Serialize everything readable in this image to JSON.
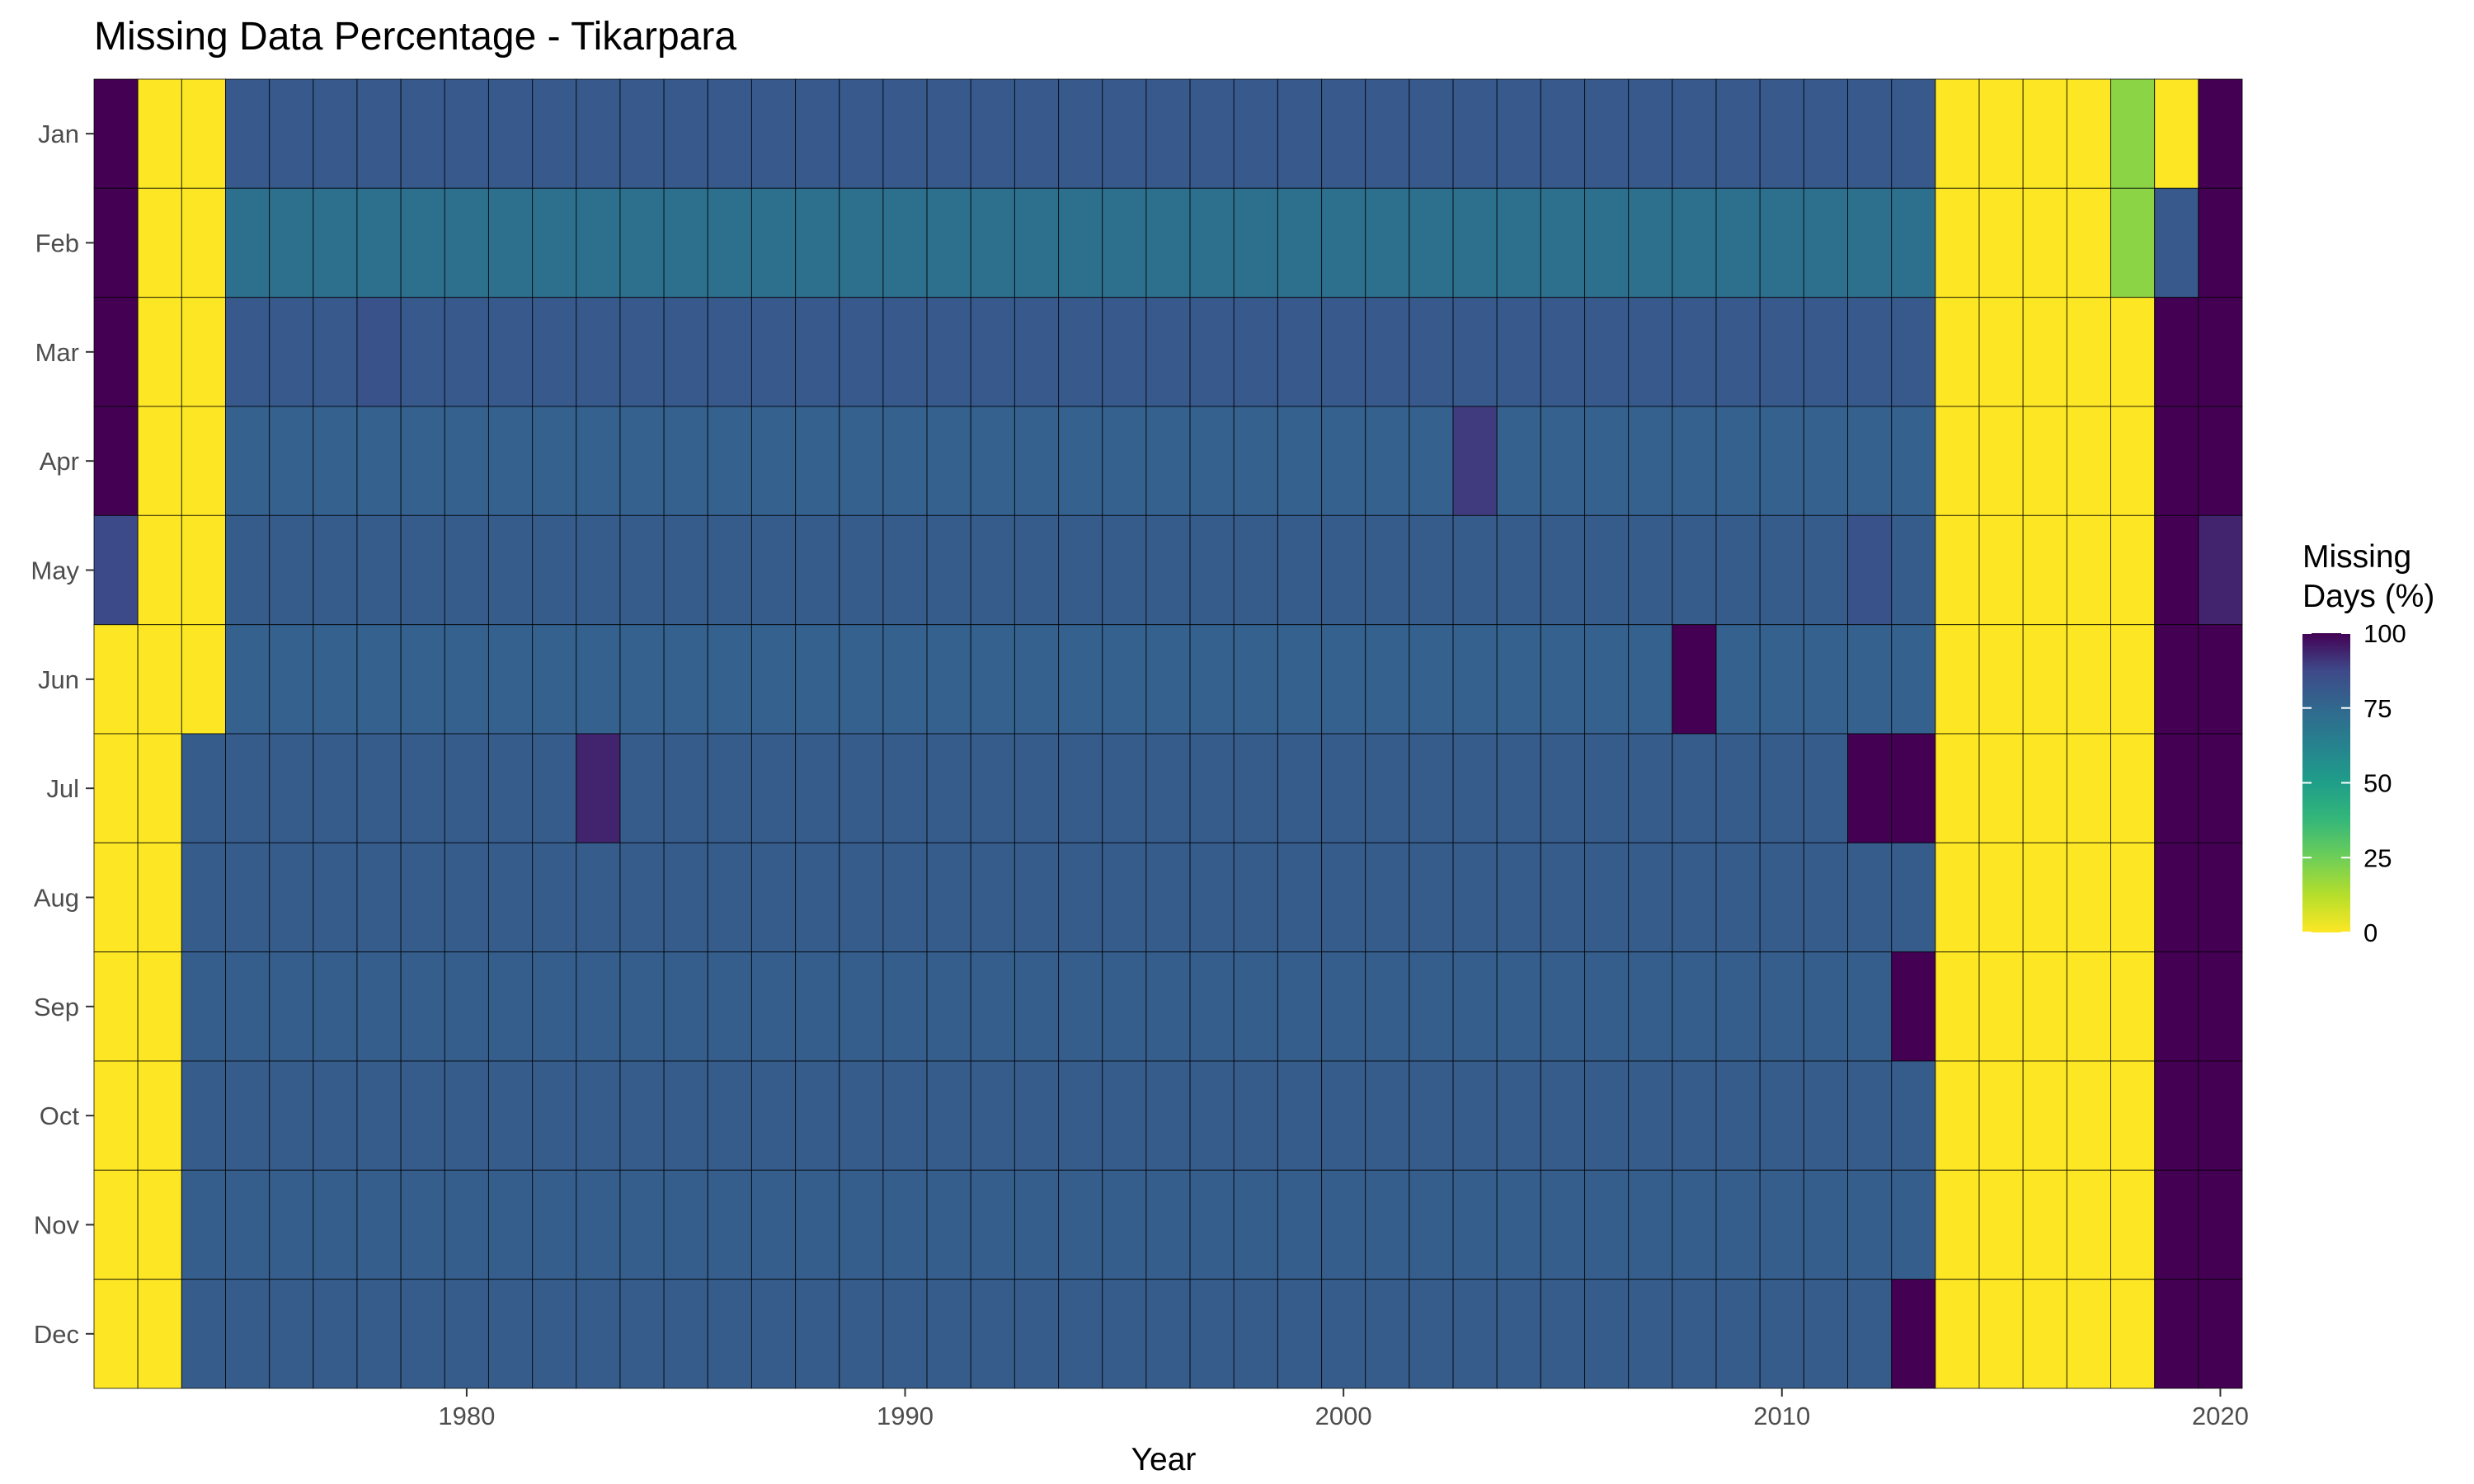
{
  "chart_data": {
    "type": "heatmap",
    "title": "Missing Data Percentage - Tikarpara",
    "xlabel": "Year",
    "ylabel": "",
    "x_range": [
      1972,
      2020
    ],
    "x_ticks": [
      1980,
      1990,
      2000,
      2010,
      2020
    ],
    "months": [
      "Jan",
      "Feb",
      "Mar",
      "Apr",
      "May",
      "Jun",
      "Jul",
      "Aug",
      "Sep",
      "Oct",
      "Nov",
      "Dec"
    ],
    "legend": {
      "title": [
        "Missing",
        "Days (%)"
      ],
      "ticks": [
        0,
        25,
        50,
        75,
        100
      ],
      "range": [
        0,
        100
      ],
      "placement": "right"
    },
    "colorscale": "viridis-reversed",
    "default_value": 81,
    "segments": [
      {
        "month": "Jan",
        "from": 1972,
        "to": 1972,
        "value": 100
      },
      {
        "month": "Jan",
        "from": 1973,
        "to": 1974,
        "value": 0
      },
      {
        "month": "Jan",
        "from": 1975,
        "to": 2013,
        "value": 81
      },
      {
        "month": "Jan",
        "from": 2014,
        "to": 2017,
        "value": 0
      },
      {
        "month": "Jan",
        "from": 2018,
        "to": 2018,
        "value": 20
      },
      {
        "month": "Jan",
        "from": 2019,
        "to": 2019,
        "value": 0
      },
      {
        "month": "Jan",
        "from": 2020,
        "to": 2020,
        "value": 100
      },
      {
        "month": "Feb",
        "from": 1972,
        "to": 1972,
        "value": 100
      },
      {
        "month": "Feb",
        "from": 1973,
        "to": 1974,
        "value": 0
      },
      {
        "month": "Feb",
        "from": 1975,
        "to": 2013,
        "value": 71
      },
      {
        "month": "Feb",
        "from": 2014,
        "to": 2017,
        "value": 0
      },
      {
        "month": "Feb",
        "from": 2018,
        "to": 2018,
        "value": 20
      },
      {
        "month": "Feb",
        "from": 2019,
        "to": 2019,
        "value": 81
      },
      {
        "month": "Feb",
        "from": 2020,
        "to": 2020,
        "value": 100
      },
      {
        "month": "Mar",
        "from": 1972,
        "to": 1972,
        "value": 100
      },
      {
        "month": "Mar",
        "from": 1973,
        "to": 1974,
        "value": 0
      },
      {
        "month": "Mar",
        "from": 1975,
        "to": 2013,
        "value": 81
      },
      {
        "month": "Mar",
        "from": 1978,
        "to": 1978,
        "value": 84
      },
      {
        "month": "Mar",
        "from": 2014,
        "to": 2018,
        "value": 0
      },
      {
        "month": "Mar",
        "from": 2019,
        "to": 2020,
        "value": 100
      },
      {
        "month": "Apr",
        "from": 1972,
        "to": 1972,
        "value": 100
      },
      {
        "month": "Apr",
        "from": 1973,
        "to": 1974,
        "value": 0
      },
      {
        "month": "Apr",
        "from": 1975,
        "to": 2013,
        "value": 78
      },
      {
        "month": "Apr",
        "from": 2003,
        "to": 2003,
        "value": 90
      },
      {
        "month": "Apr",
        "from": 2014,
        "to": 2018,
        "value": 0
      },
      {
        "month": "Apr",
        "from": 2019,
        "to": 2020,
        "value": 100
      },
      {
        "month": "May",
        "from": 1972,
        "to": 1972,
        "value": 87
      },
      {
        "month": "May",
        "from": 1973,
        "to": 1974,
        "value": 0
      },
      {
        "month": "May",
        "from": 1975,
        "to": 2013,
        "value": 80
      },
      {
        "month": "May",
        "from": 2012,
        "to": 2012,
        "value": 84
      },
      {
        "month": "May",
        "from": 2014,
        "to": 2018,
        "value": 0
      },
      {
        "month": "May",
        "from": 2019,
        "to": 2019,
        "value": 100
      },
      {
        "month": "May",
        "from": 2020,
        "to": 2020,
        "value": 94
      },
      {
        "month": "Jun",
        "from": 1972,
        "to": 1974,
        "value": 0
      },
      {
        "month": "Jun",
        "from": 1975,
        "to": 2013,
        "value": 78
      },
      {
        "month": "Jun",
        "from": 2008,
        "to": 2008,
        "value": 100
      },
      {
        "month": "Jun",
        "from": 2014,
        "to": 2018,
        "value": 0
      },
      {
        "month": "Jun",
        "from": 2019,
        "to": 2020,
        "value": 100
      },
      {
        "month": "Jul",
        "from": 1972,
        "to": 1973,
        "value": 0
      },
      {
        "month": "Jul",
        "from": 1974,
        "to": 2013,
        "value": 80
      },
      {
        "month": "Jul",
        "from": 1983,
        "to": 1983,
        "value": 94
      },
      {
        "month": "Jul",
        "from": 2012,
        "to": 2013,
        "value": 100
      },
      {
        "month": "Jul",
        "from": 2014,
        "to": 2018,
        "value": 0
      },
      {
        "month": "Jul",
        "from": 2019,
        "to": 2020,
        "value": 100
      },
      {
        "month": "Aug",
        "from": 1972,
        "to": 1973,
        "value": 0
      },
      {
        "month": "Aug",
        "from": 1974,
        "to": 2013,
        "value": 80
      },
      {
        "month": "Aug",
        "from": 2014,
        "to": 2018,
        "value": 0
      },
      {
        "month": "Aug",
        "from": 2019,
        "to": 2020,
        "value": 100
      },
      {
        "month": "Sep",
        "from": 1972,
        "to": 1973,
        "value": 0
      },
      {
        "month": "Sep",
        "from": 1974,
        "to": 2013,
        "value": 79
      },
      {
        "month": "Sep",
        "from": 2013,
        "to": 2013,
        "value": 100
      },
      {
        "month": "Sep",
        "from": 2014,
        "to": 2018,
        "value": 0
      },
      {
        "month": "Sep",
        "from": 2019,
        "to": 2020,
        "value": 100
      },
      {
        "month": "Oct",
        "from": 1972,
        "to": 1973,
        "value": 0
      },
      {
        "month": "Oct",
        "from": 1974,
        "to": 2013,
        "value": 80
      },
      {
        "month": "Oct",
        "from": 2014,
        "to": 2018,
        "value": 0
      },
      {
        "month": "Oct",
        "from": 2019,
        "to": 2020,
        "value": 100
      },
      {
        "month": "Nov",
        "from": 1972,
        "to": 1973,
        "value": 0
      },
      {
        "month": "Nov",
        "from": 1974,
        "to": 2013,
        "value": 79
      },
      {
        "month": "Nov",
        "from": 2014,
        "to": 2018,
        "value": 0
      },
      {
        "month": "Nov",
        "from": 2019,
        "to": 2020,
        "value": 100
      },
      {
        "month": "Dec",
        "from": 1972,
        "to": 1973,
        "value": 0
      },
      {
        "month": "Dec",
        "from": 1974,
        "to": 2013,
        "value": 80
      },
      {
        "month": "Dec",
        "from": 2013,
        "to": 2013,
        "value": 100
      },
      {
        "month": "Dec",
        "from": 2014,
        "to": 2018,
        "value": 0
      },
      {
        "month": "Dec",
        "from": 2019,
        "to": 2020,
        "value": 100
      }
    ]
  }
}
